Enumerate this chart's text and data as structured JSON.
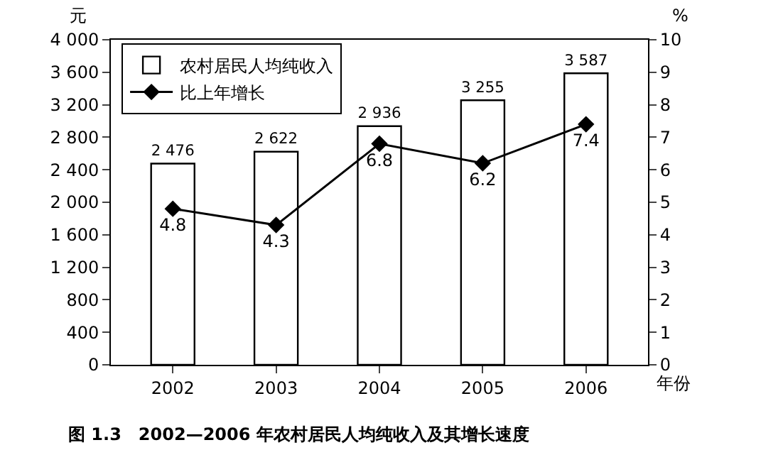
{
  "chart_data": {
    "type": "bar",
    "title": "图 1.3　2002—2006 年农村居民人均纯收入及其增长速度",
    "xlabel": "年份",
    "ylabel": "元",
    "y2label": "%",
    "categories": [
      "2002",
      "2003",
      "2004",
      "2005",
      "2006"
    ],
    "series": [
      {
        "name": "农村居民人均纯收入",
        "color": "#ffffff",
        "values": [
          2476,
          2622,
          2936,
          3255,
          3587
        ]
      },
      {
        "name": "比上年增长",
        "type": "line",
        "axis": "y2",
        "color": "#000000",
        "marker": "diamond",
        "values": [
          4.8,
          4.3,
          6.8,
          6.2,
          7.4
        ]
      }
    ],
    "ylim": [
      0,
      4000
    ],
    "yticks": [
      0,
      400,
      800,
      {
        "value": 1200,
        "label": "1 200"
      },
      {
        "value": 1600,
        "label": "1 600"
      },
      {
        "value": 2000,
        "label": "2 000"
      },
      {
        "value": 2400,
        "label": "2 400"
      },
      {
        "value": 2800,
        "label": "2 800"
      },
      {
        "value": 3200,
        "label": "3 200"
      },
      {
        "value": 3600,
        "label": "3 600"
      },
      {
        "value": 4000,
        "label": "4 000"
      }
    ],
    "y2lim": [
      0,
      10
    ],
    "y2ticks": [
      0,
      1,
      2,
      3,
      4,
      5,
      6,
      7,
      8,
      9,
      10
    ],
    "data_labels": true,
    "legend": "top left"
  }
}
